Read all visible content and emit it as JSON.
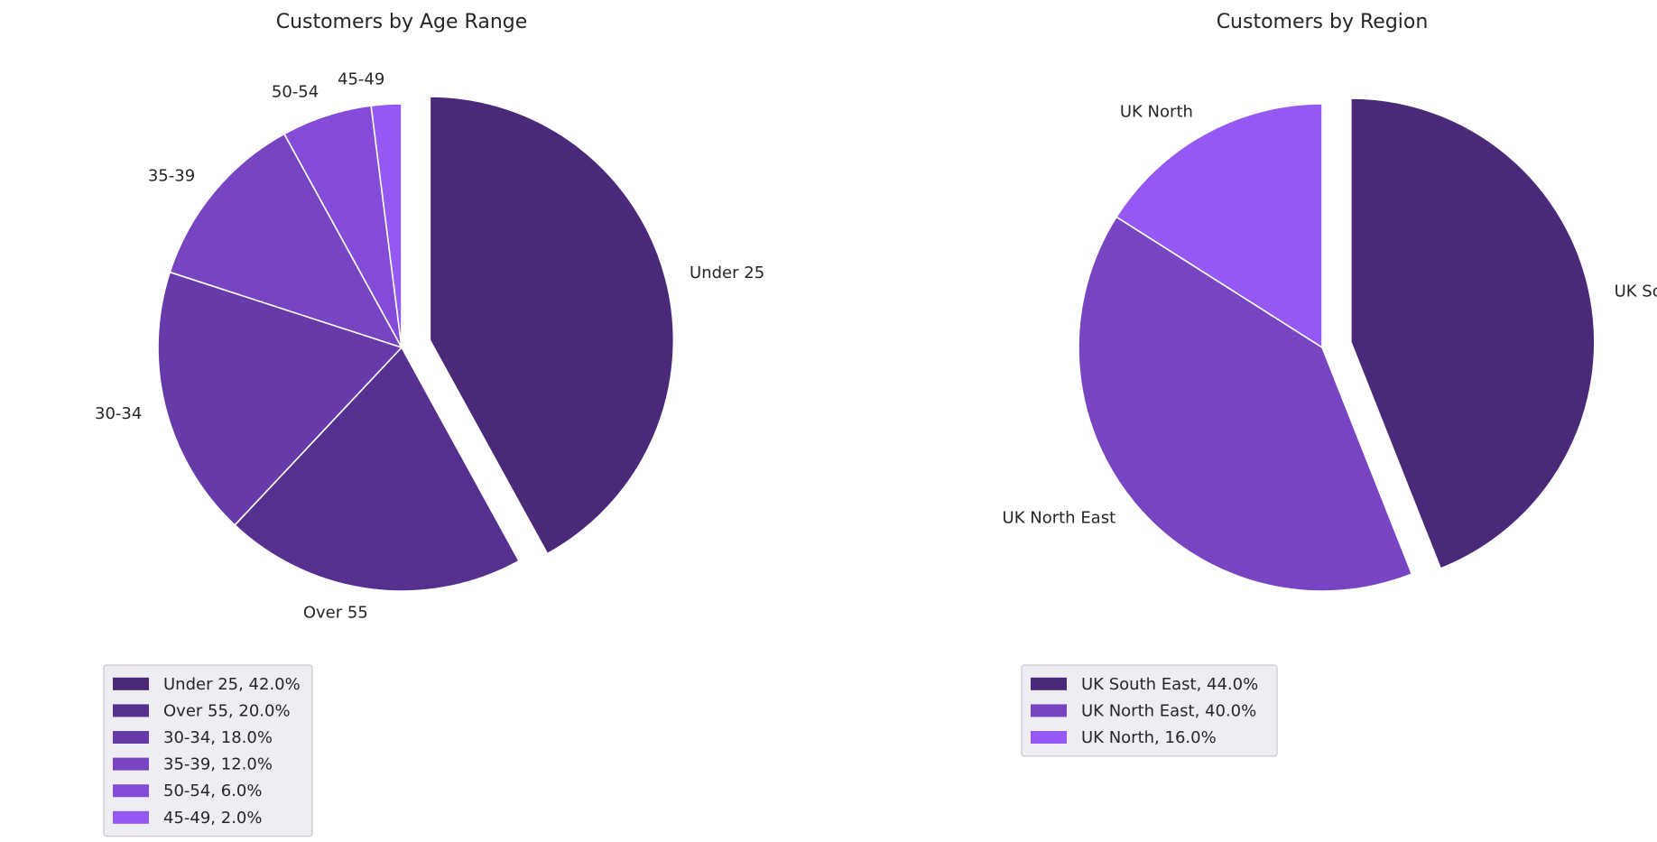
{
  "colors": {
    "c1": "#4a2a78",
    "c2": "#56308f",
    "c3": "#673aaa",
    "c4": "#7744c2",
    "c5": "#844ad8",
    "c6": "#9658f3",
    "background": "#ffffff",
    "legend_background": "#eeedf3",
    "slice_edge": "#ffffff"
  },
  "chart_data": [
    {
      "type": "pie",
      "title": "Customers by Age Range",
      "start_angle_deg": 90,
      "direction": "clockwise",
      "legend_placement": "bottom-left",
      "slices": [
        {
          "label": "Under 25",
          "value": 42.0,
          "legend": "Under 25, 42.0%",
          "color": "#4a2a78",
          "exploded": true
        },
        {
          "label": "Over 55",
          "value": 20.0,
          "legend": "Over 55, 20.0%",
          "color": "#56308f",
          "exploded": false
        },
        {
          "label": "30-34",
          "value": 18.0,
          "legend": "30-34, 18.0%",
          "color": "#673aaa",
          "exploded": false
        },
        {
          "label": "35-39",
          "value": 12.0,
          "legend": "35-39, 12.0%",
          "color": "#7744c2",
          "exploded": false
        },
        {
          "label": "50-54",
          "value": 6.0,
          "legend": "50-54, 6.0%",
          "color": "#844ad8",
          "exploded": false
        },
        {
          "label": "45-49",
          "value": 2.0,
          "legend": "45-49, 2.0%",
          "color": "#9658f3",
          "exploded": false
        }
      ]
    },
    {
      "type": "pie",
      "title": "Customers by Region",
      "start_angle_deg": 90,
      "direction": "clockwise",
      "legend_placement": "bottom-left",
      "slices": [
        {
          "label": "UK South East",
          "value": 44.0,
          "legend": "UK South East, 44.0%",
          "color": "#4a2a78",
          "exploded": true
        },
        {
          "label": "UK North East",
          "value": 40.0,
          "legend": "UK North East, 40.0%",
          "color": "#7744c2",
          "exploded": false
        },
        {
          "label": "UK North",
          "value": 16.0,
          "legend": "UK North, 16.0%",
          "color": "#9658f3",
          "exploded": false
        }
      ]
    }
  ]
}
